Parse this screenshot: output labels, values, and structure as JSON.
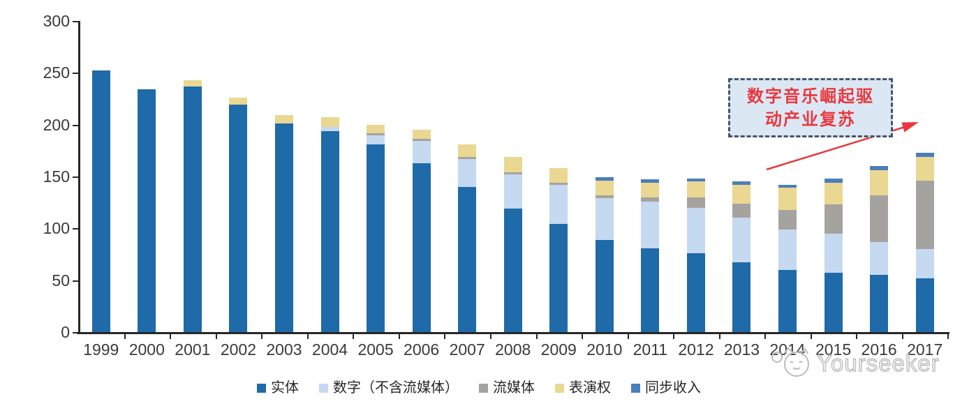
{
  "chart_data": {
    "type": "bar",
    "stacked": true,
    "categories": [
      "1999",
      "2000",
      "2001",
      "2002",
      "2003",
      "2004",
      "2005",
      "2006",
      "2007",
      "2008",
      "2009",
      "2010",
      "2011",
      "2012",
      "2013",
      "2014",
      "2015",
      "2016",
      "2017"
    ],
    "series": [
      {
        "name": "实体",
        "color": "#1F6AA8",
        "values": [
          252,
          234,
          237,
          219,
          201,
          194,
          181,
          163,
          140,
          119,
          104,
          89,
          81,
          76,
          67,
          60,
          57,
          55,
          52
        ]
      },
      {
        "name": "数字（不含流媒体）",
        "color": "#C5D9F0",
        "values": [
          0,
          0,
          0,
          0,
          0,
          4,
          9,
          21,
          27,
          33,
          38,
          40,
          45,
          44,
          43,
          39,
          38,
          32,
          28
        ]
      },
      {
        "name": "流媒体",
        "color": "#A5A3A0",
        "values": [
          0,
          0,
          0,
          0,
          0,
          0,
          2,
          2,
          2,
          2,
          2,
          3,
          4,
          10,
          14,
          19,
          28,
          45,
          66
        ]
      },
      {
        "name": "表演权",
        "color": "#EAD792",
        "values": [
          0,
          0,
          6,
          7,
          8,
          9,
          8,
          9,
          12,
          15,
          14,
          14,
          14,
          15,
          18,
          21,
          21,
          24,
          23
        ]
      },
      {
        "name": "同步收入",
        "color": "#4A7EBB",
        "values": [
          0,
          0,
          0,
          0,
          0,
          0,
          0,
          0,
          0,
          0,
          0,
          3,
          3,
          3,
          3,
          3,
          4,
          4,
          4
        ]
      }
    ],
    "ylim": [
      0,
      300
    ],
    "yticks": [
      0,
      50,
      100,
      150,
      200,
      250,
      300
    ],
    "xlabel": "",
    "ylabel": "",
    "title": "",
    "grid": false,
    "legend_position": "bottom"
  },
  "annotation": {
    "line1": "数字音乐崛起驱",
    "line2": "动产业复苏",
    "text_color": "#e8383d",
    "border_color": "#44546a",
    "fill_color": "#dce7f4",
    "arrow_color": "#e8383d"
  },
  "watermark": {
    "text": "Yourseeker"
  }
}
